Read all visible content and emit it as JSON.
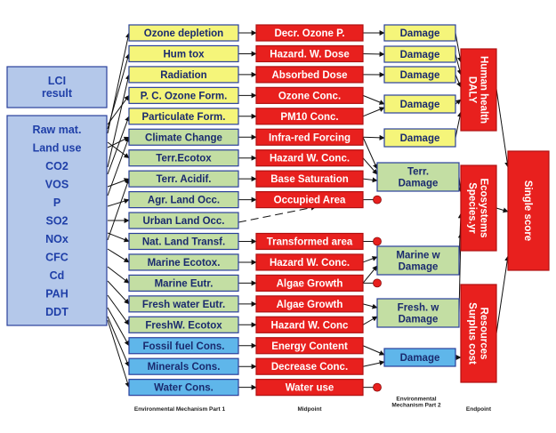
{
  "lci_result": "LCI\nresult",
  "inventory": [
    "Raw mat.",
    "Land use",
    "CO2",
    "VOS",
    "P",
    "SO2",
    "NOx",
    "CFC",
    "Cd",
    "PAH",
    "DDT"
  ],
  "mechanisms": [
    {
      "label": "Ozone depletion",
      "group": "yellow"
    },
    {
      "label": "Hum tox",
      "group": "yellow"
    },
    {
      "label": "Radiation",
      "group": "yellow"
    },
    {
      "label": "P. C. Ozone Form.",
      "group": "yellow"
    },
    {
      "label": "Particulate Form.",
      "group": "yellow"
    },
    {
      "label": "Climate Change",
      "group": "green"
    },
    {
      "label": "Terr.Ecotox",
      "group": "green"
    },
    {
      "label": "Terr. Acidif.",
      "group": "green"
    },
    {
      "label": "Agr. Land Occ.",
      "group": "green"
    },
    {
      "label": "Urban Land Occ.",
      "group": "green"
    },
    {
      "label": "Nat. Land Transf.",
      "group": "green"
    },
    {
      "label": "Marine Ecotox.",
      "group": "green"
    },
    {
      "label": "Marine Eutr.",
      "group": "green"
    },
    {
      "label": "Fresh water Eutr.",
      "group": "green"
    },
    {
      "label": "FreshW. Ecotox",
      "group": "green"
    },
    {
      "label": "Fossil fuel Cons.",
      "group": "blue"
    },
    {
      "label": "Minerals Cons.",
      "group": "blue"
    },
    {
      "label": "Water Cons.",
      "group": "blue"
    }
  ],
  "midpoints": [
    "Decr. Ozone P.",
    "Hazard. W. Dose",
    "Absorbed Dose",
    "Ozone Conc.",
    "PM10 Conc.",
    "Infra-red Forcing",
    "Hazard W. Conc.",
    "Base Saturation",
    "Occupied Area",
    "Transformed area",
    "Hazard W. Conc.",
    "Algae Growth",
    "Algae Growth",
    "Hazard W. Conc",
    "Energy Content",
    "Decrease Conc.",
    "Water use"
  ],
  "damages": [
    {
      "label": "Damage",
      "color": "yellow"
    },
    {
      "label": "Damage",
      "color": "yellow"
    },
    {
      "label": "Damage",
      "color": "yellow"
    },
    {
      "label": "Damage",
      "color": "yellow"
    },
    {
      "label": "Damage",
      "color": "yellow"
    },
    {
      "label": "Terr.\nDamage",
      "color": "green"
    },
    {
      "label": "Marine w\nDamage",
      "color": "green"
    },
    {
      "label": "Fresh. w\nDamage",
      "color": "green"
    },
    {
      "label": "Damage",
      "color": "blue"
    }
  ],
  "endpoints": [
    "Human health\nDALY",
    "Ecosystems\nSpecies.yr",
    "Resources\nSurplus cost"
  ],
  "single_score": "Single score",
  "footer": {
    "mech1": "Environmental Mechanism Part 1",
    "midpoint": "Midpoint",
    "mech2": "Environmental\nMechanism Part 2",
    "endpoint": "Endpoint"
  },
  "colors": {
    "yellow": "#f5f57a",
    "green": "#c3dea3",
    "blue": "#5fb6ea",
    "red": "#e8201e",
    "lci": "#b4c8ea",
    "border": "#2a3f9b"
  }
}
